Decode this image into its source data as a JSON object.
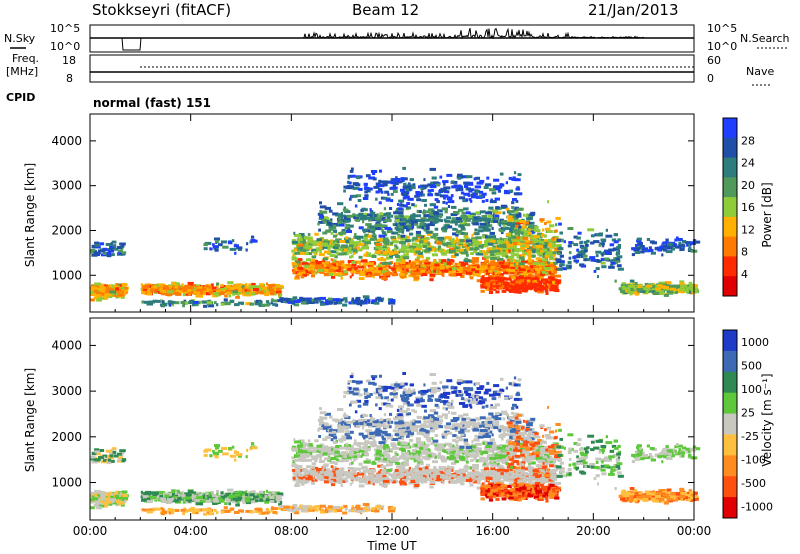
{
  "header": {
    "station": "Stokkseyri (fitACF)",
    "beam": "Beam 12",
    "date": "21/Jan/2013"
  },
  "sidebars": {
    "nsky_label": "N.Sky",
    "nsearch_label": "N.Search",
    "freq_label": "Freq.",
    "freq_unit": "[MHz]",
    "nave_label": "Nave",
    "cpid_label": "CPID",
    "cpid_text": "normal (fast) 151"
  },
  "mini_axes": {
    "noise_left_ticks": [
      "10^5",
      "10^0"
    ],
    "noise_right_ticks": [
      "10^5",
      "10^0"
    ],
    "freq_left_ticks": [
      "18",
      "8"
    ],
    "freq_right_ticks": [
      "60",
      "0"
    ]
  },
  "colors": {
    "power_scale": [
      "#1f3fff",
      "#1f4fa8",
      "#2e7d7d",
      "#4f9a5a",
      "#8fcc3a",
      "#ffb000",
      "#ff7a00",
      "#ff2a00",
      "#e00000"
    ],
    "velocity_scale": [
      "#1e3cc8",
      "#3c6ab4",
      "#2e8a52",
      "#5cc83a",
      "#c8c8c0",
      "#ffc040",
      "#ff8c20",
      "#ff5010",
      "#e00000"
    ]
  },
  "chart_data": [
    {
      "type": "heatmap",
      "panel": "power",
      "ylabel": "Slant Range [km]",
      "xlabel": "Time UT",
      "x_ticks": [
        "00:00",
        "04:00",
        "08:00",
        "12:00",
        "16:00",
        "20:00",
        "00:00"
      ],
      "y_ticks": [
        "1000",
        "2000",
        "3000",
        "4000"
      ],
      "ylim": [
        180,
        4600
      ],
      "colorbar_label": "Power [dB]",
      "colorbar_ticks": [
        "28",
        "24",
        "20",
        "16",
        "12",
        "8",
        "4"
      ]
    },
    {
      "type": "heatmap",
      "panel": "velocity",
      "ylabel": "Slant Range [km]",
      "xlabel": "Time UT",
      "x_ticks": [
        "00:00",
        "04:00",
        "08:00",
        "12:00",
        "16:00",
        "20:00",
        "00:00"
      ],
      "y_ticks": [
        "1000",
        "2000",
        "3000",
        "4000"
      ],
      "ylim": [
        180,
        4600
      ],
      "colorbar_label": "Velocity [m s⁻¹]",
      "colorbar_ticks": [
        "1000",
        "500",
        "100",
        "25",
        "-25",
        "-100",
        "-500",
        "-1000"
      ]
    }
  ]
}
